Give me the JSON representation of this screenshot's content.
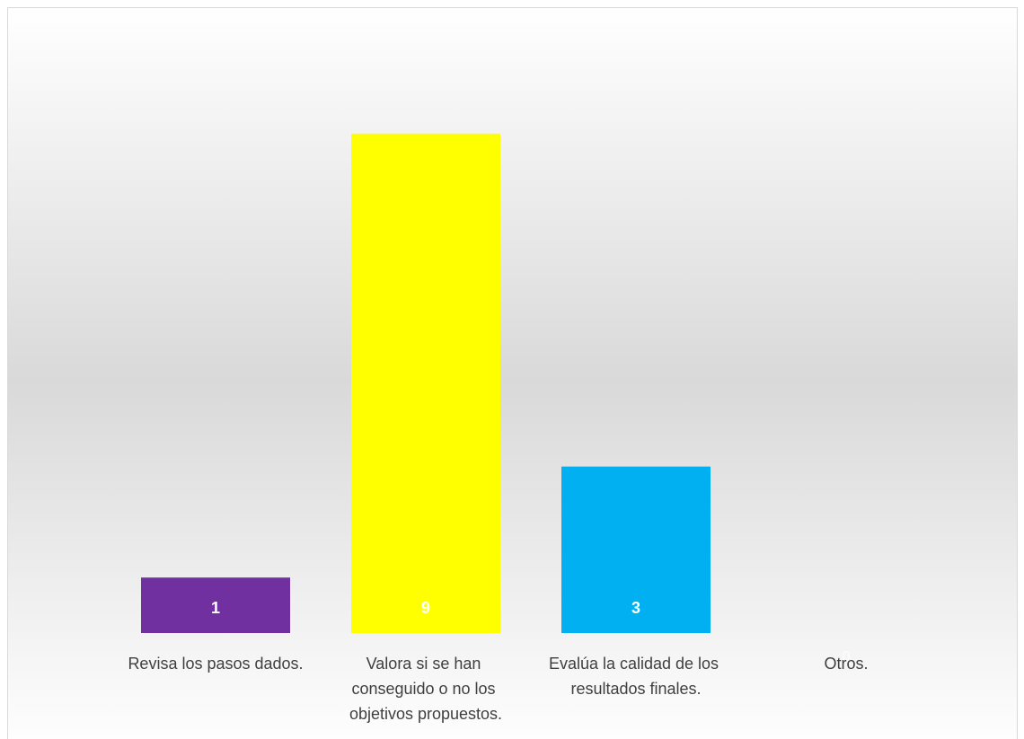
{
  "chart_data": {
    "type": "bar",
    "categories": [
      "Revisa los pasos dados.",
      "Valora si se han conseguido o no los objetivos propuestos.",
      "Evalúa la calidad de los resultados finales.",
      "Otros."
    ],
    "values": [
      1,
      9,
      3,
      0
    ],
    "colors": [
      "#7030a0",
      "#ffff00",
      "#00b0f0",
      "#ed7d31"
    ],
    "ylim": [
      0,
      10
    ]
  }
}
